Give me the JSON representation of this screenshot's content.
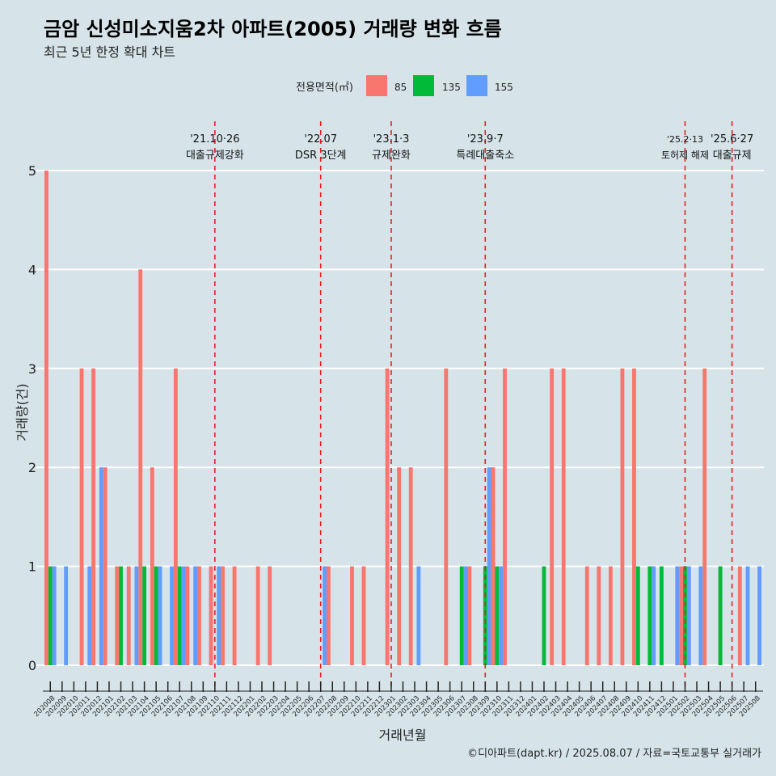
{
  "header": {
    "title": "금암 신성미소지움2차 아파트(2005) 거래량 변화 흐름",
    "subtitle": "최근 5년 한정 확대 차트"
  },
  "legend": {
    "title": "전용면적(㎡)",
    "items": [
      {
        "label": "85",
        "color": "#f8766d"
      },
      {
        "label": "135",
        "color": "#00ba38"
      },
      {
        "label": "155",
        "color": "#619cff"
      }
    ]
  },
  "footer": {
    "credit": "©디아파트(dapt.kr) / 2025.08.07 / 자료=국토교통부 실거래가"
  },
  "chart_data": {
    "type": "bar",
    "title": "금암 신성미소지움2차 아파트(2005) 거래량 변화 흐름",
    "subtitle": "최근 5년 한정 확대 차트",
    "xlabel": "거래년월",
    "ylabel": "거래량(건)",
    "ylim": [
      0,
      5
    ],
    "yticks": [
      0,
      1,
      2,
      3,
      4,
      5
    ],
    "grid": true,
    "legend_position": "top",
    "categories": [
      "202008",
      "202009",
      "202010",
      "202011",
      "202012",
      "202101",
      "202102",
      "202103",
      "202104",
      "202105",
      "202106",
      "202107",
      "202108",
      "202109",
      "202110",
      "202111",
      "202112",
      "202201",
      "202202",
      "202203",
      "202204",
      "202205",
      "202206",
      "202207",
      "202208",
      "202209",
      "202210",
      "202211",
      "202212",
      "202301",
      "202302",
      "202303",
      "202304",
      "202305",
      "202306",
      "202307",
      "202308",
      "202309",
      "202310",
      "202311",
      "202312",
      "202401",
      "202402",
      "202403",
      "202404",
      "202405",
      "202406",
      "202407",
      "202408",
      "202409",
      "202410",
      "202411",
      "202412",
      "202501",
      "202502",
      "202503",
      "202504",
      "202505",
      "202506",
      "202507",
      "202508"
    ],
    "series": [
      {
        "name": "85",
        "color": "#f8766d",
        "values": [
          5,
          0,
          0,
          3,
          3,
          2,
          1,
          1,
          4,
          2,
          0,
          3,
          1,
          1,
          1,
          1,
          1,
          0,
          1,
          1,
          0,
          0,
          0,
          0,
          1,
          0,
          1,
          1,
          0,
          3,
          2,
          2,
          0,
          0,
          3,
          0,
          1,
          0,
          2,
          3,
          0,
          0,
          0,
          3,
          3,
          0,
          1,
          1,
          1,
          3,
          3,
          0,
          0,
          0,
          1,
          0,
          3,
          0,
          0,
          1,
          0
        ]
      },
      {
        "name": "135",
        "color": "#00ba38",
        "values": [
          1,
          0,
          0,
          0,
          0,
          0,
          1,
          0,
          1,
          1,
          0,
          1,
          0,
          0,
          0,
          0,
          0,
          0,
          0,
          0,
          0,
          0,
          0,
          0,
          0,
          0,
          0,
          0,
          0,
          0,
          0,
          0,
          0,
          0,
          0,
          1,
          0,
          1,
          1,
          0,
          0,
          0,
          1,
          0,
          0,
          0,
          0,
          0,
          0,
          0,
          1,
          1,
          1,
          0,
          1,
          0,
          0,
          1,
          0,
          0,
          0
        ]
      },
      {
        "name": "155",
        "color": "#619cff",
        "values": [
          1,
          1,
          0,
          1,
          2,
          0,
          0,
          1,
          0,
          1,
          1,
          1,
          1,
          0,
          1,
          0,
          0,
          0,
          0,
          0,
          0,
          0,
          0,
          1,
          0,
          0,
          0,
          0,
          0,
          0,
          0,
          1,
          0,
          0,
          0,
          1,
          0,
          2,
          1,
          0,
          0,
          0,
          0,
          0,
          0,
          0,
          0,
          0,
          0,
          0,
          0,
          1,
          0,
          1,
          1,
          1,
          0,
          0,
          0,
          1,
          1
        ]
      }
    ],
    "annotations": [
      {
        "x": "202110",
        "date": "'21.10·26",
        "label": "대출규제강화"
      },
      {
        "x": "202207",
        "date": "'22.07",
        "label": "DSR 3단계"
      },
      {
        "x": "202301",
        "date": "'23.1·3",
        "label": "규제완화"
      },
      {
        "x": "202309",
        "date": "'23.9·7",
        "label": "특례대출축소"
      },
      {
        "x": "202502",
        "date": "'25.2·13",
        "label": "토허제 해제"
      },
      {
        "x": "202506",
        "date": "'25.6·27",
        "label": "대출규제"
      }
    ]
  }
}
